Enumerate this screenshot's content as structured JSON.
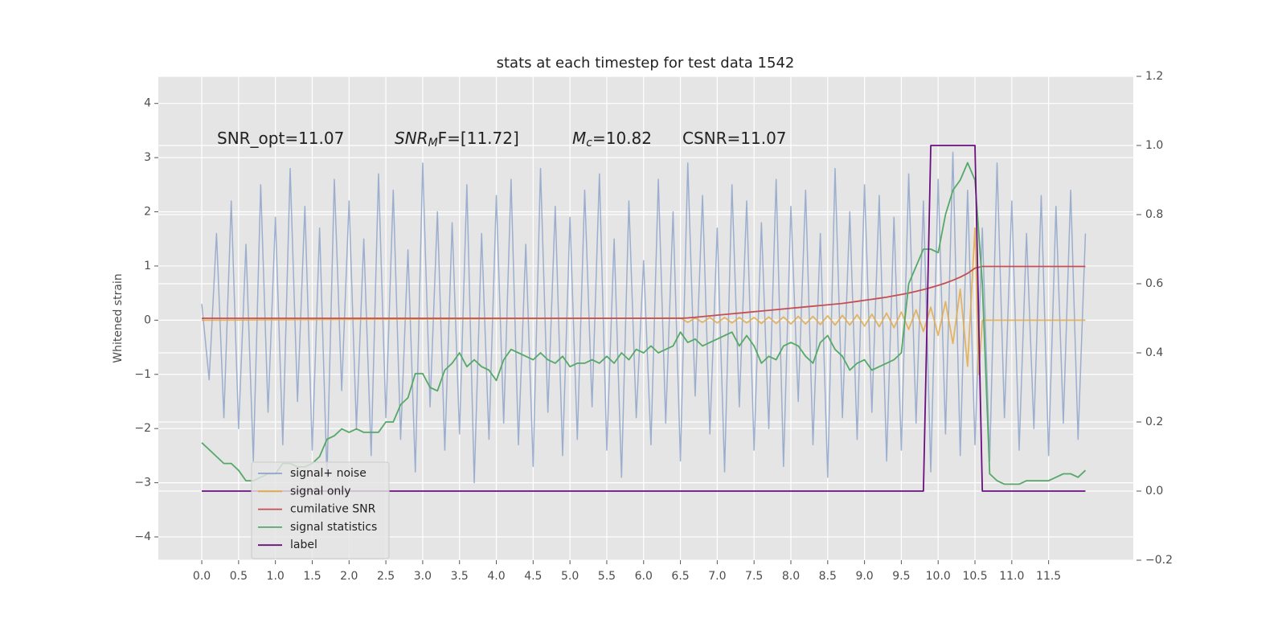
{
  "chart_data": {
    "type": "line",
    "title": "stats at each timestep for test data 1542",
    "y_label": "Whitened strain",
    "grid": true,
    "legend": "lower left",
    "xlim": [
      -0.59,
      12.65
    ],
    "ylim": [
      -4.43,
      4.5
    ],
    "y2lim": [
      -0.2,
      1.2
    ],
    "xticks": [
      {
        "value": 0,
        "label": "0.0"
      },
      {
        "value": 0.5,
        "label": "0.5"
      },
      {
        "value": 1,
        "label": "1.0"
      },
      {
        "value": 1.5,
        "label": "1.5"
      },
      {
        "value": 2,
        "label": "2.0"
      },
      {
        "value": 2.5,
        "label": "2.5"
      },
      {
        "value": 3,
        "label": "3.0"
      },
      {
        "value": 3.5,
        "label": "3.5"
      },
      {
        "value": 4,
        "label": "4.0"
      },
      {
        "value": 4.5,
        "label": "4.5"
      },
      {
        "value": 5,
        "label": "5.0"
      },
      {
        "value": 5.5,
        "label": "5.5"
      },
      {
        "value": 6,
        "label": "6.0"
      },
      {
        "value": 6.5,
        "label": "6.5"
      },
      {
        "value": 7,
        "label": "7.0"
      },
      {
        "value": 7.5,
        "label": "7.5"
      },
      {
        "value": 8,
        "label": "8.0"
      },
      {
        "value": 8.5,
        "label": "8.5"
      },
      {
        "value": 9,
        "label": "9.0"
      },
      {
        "value": 9.5,
        "label": "9.5"
      },
      {
        "value": 10,
        "label": "10.0"
      },
      {
        "value": 10.5,
        "label": "10.5"
      },
      {
        "value": 11,
        "label": "11.0"
      },
      {
        "value": 11.5,
        "label": "11.5"
      }
    ],
    "yticks": [
      {
        "value": -4,
        "label": "−4"
      },
      {
        "value": -3,
        "label": "−3"
      },
      {
        "value": -2,
        "label": "−2"
      },
      {
        "value": -1,
        "label": "−1"
      },
      0,
      1,
      2,
      3,
      4
    ],
    "y2ticks": [
      {
        "value": -0.2,
        "label": "−0.2"
      },
      {
        "value": 0,
        "label": "0.0"
      },
      0.2,
      0.4,
      0.6,
      0.8,
      {
        "value": 1,
        "label": "1.0"
      },
      1.2
    ],
    "annotations": [
      {
        "parts": [
          {
            "text": "SNR_opt=11.07"
          }
        ]
      },
      {
        "parts": [
          {
            "text": "SNR",
            "italic": true
          },
          {
            "text": "M",
            "italic": true,
            "sub": true
          },
          {
            "text": "F=[11.72]"
          }
        ]
      },
      {
        "parts": [
          {
            "text": "M",
            "italic": true
          },
          {
            "text": "c",
            "italic": true,
            "sub": true
          },
          {
            "text": "=10.82"
          }
        ]
      },
      {
        "parts": [
          {
            "text": "CSNR=11.07"
          }
        ]
      }
    ],
    "x": [
      0.0,
      0.1,
      0.2,
      0.3,
      0.4,
      0.5,
      0.6,
      0.7,
      0.8,
      0.9,
      1.0,
      1.1,
      1.2,
      1.3,
      1.4,
      1.5,
      1.6,
      1.7,
      1.8,
      1.9,
      2.0,
      2.1,
      2.2,
      2.3,
      2.4,
      2.5,
      2.6,
      2.7,
      2.8,
      2.9,
      3.0,
      3.1,
      3.2,
      3.3,
      3.4,
      3.5,
      3.6,
      3.7,
      3.8,
      3.9,
      4.0,
      4.1,
      4.2,
      4.3,
      4.4,
      4.5,
      4.6,
      4.7,
      4.8,
      4.9,
      5.0,
      5.1,
      5.2,
      5.3,
      5.4,
      5.5,
      5.6,
      5.7,
      5.8,
      5.9,
      6.0,
      6.1,
      6.2,
      6.3,
      6.4,
      6.5,
      6.6,
      6.7,
      6.8,
      6.9,
      7.0,
      7.1,
      7.2,
      7.3,
      7.4,
      7.5,
      7.6,
      7.7,
      7.8,
      7.9,
      8.0,
      8.1,
      8.2,
      8.3,
      8.4,
      8.5,
      8.6,
      8.7,
      8.8,
      8.9,
      9.0,
      9.1,
      9.2,
      9.3,
      9.4,
      9.5,
      9.6,
      9.7,
      9.8,
      9.9,
      10.0,
      10.1,
      10.2,
      10.3,
      10.4,
      10.5,
      10.6,
      10.7,
      10.8,
      10.9,
      11.0,
      11.1,
      11.2,
      11.3,
      11.4,
      11.5,
      11.6,
      11.7,
      11.8,
      11.9,
      12.0
    ],
    "series": [
      {
        "name": "signal+ noise",
        "color": "#8fa4ca",
        "values": [
          0.3,
          -1.1,
          1.6,
          -1.8,
          2.2,
          -2.0,
          1.4,
          -2.6,
          2.5,
          -1.7,
          1.9,
          -2.3,
          2.8,
          -1.5,
          2.1,
          -2.4,
          1.7,
          -2.9,
          2.6,
          -1.3,
          2.2,
          -2.0,
          1.5,
          -2.5,
          2.7,
          -1.8,
          2.4,
          -2.2,
          1.3,
          -2.8,
          2.9,
          -1.6,
          2.0,
          -2.4,
          1.8,
          -2.1,
          2.5,
          -3.0,
          1.6,
          -2.2,
          2.3,
          -1.9,
          2.6,
          -2.3,
          1.4,
          -2.7,
          2.8,
          -1.7,
          2.1,
          -2.5,
          1.9,
          -2.2,
          2.4,
          -1.6,
          2.7,
          -2.4,
          1.5,
          -2.9,
          2.2,
          -1.8,
          1.1,
          -2.3,
          2.6,
          -1.9,
          2.0,
          -2.6,
          2.9,
          -1.4,
          2.3,
          -2.1,
          1.7,
          -2.8,
          2.5,
          -1.6,
          2.2,
          -2.4,
          1.8,
          -2.0,
          2.6,
          -2.7,
          2.1,
          -1.5,
          2.4,
          -2.3,
          1.6,
          -2.9,
          2.8,
          -1.8,
          2.0,
          -2.2,
          2.5,
          -1.7,
          2.3,
          -2.6,
          1.9,
          -2.4,
          2.7,
          -1.9,
          2.2,
          -2.8,
          2.6,
          -2.1,
          3.1,
          -2.5,
          2.4,
          -2.3,
          1.7,
          -2.6,
          2.9,
          -1.8,
          2.2,
          -2.4,
          1.6,
          -2.0,
          2.3,
          -2.5,
          2.1,
          -1.9,
          2.4,
          -2.2,
          1.6
        ]
      },
      {
        "name": "signal only",
        "color": "#e0aa4c",
        "x": [
          0.0,
          6.5,
          6.6,
          6.7,
          6.8,
          6.9,
          7.0,
          7.1,
          7.2,
          7.3,
          7.4,
          7.5,
          7.6,
          7.7,
          7.8,
          7.9,
          8.0,
          8.1,
          8.2,
          8.3,
          8.4,
          8.5,
          8.6,
          8.7,
          8.8,
          8.9,
          9.0,
          9.1,
          9.2,
          9.3,
          9.4,
          9.5,
          9.6,
          9.7,
          9.8,
          9.9,
          10.0,
          10.1,
          10.2,
          10.3,
          10.4,
          10.5,
          10.55,
          10.6,
          12.0
        ],
        "values": [
          0,
          0.04,
          -0.04,
          0.04,
          -0.04,
          0.05,
          -0.05,
          0.05,
          -0.05,
          0.05,
          -0.05,
          0.05,
          -0.06,
          0.06,
          -0.06,
          0.06,
          -0.07,
          0.07,
          -0.07,
          0.07,
          -0.08,
          0.08,
          -0.09,
          0.09,
          -0.09,
          0.1,
          -0.11,
          0.11,
          -0.12,
          0.13,
          -0.14,
          0.15,
          -0.17,
          0.19,
          -0.21,
          0.24,
          -0.28,
          0.34,
          -0.43,
          0.57,
          -0.85,
          1.7,
          -1.0,
          0,
          0
        ]
      },
      {
        "name": "cumilative SNR",
        "color": "#c44e52",
        "axis": "y2",
        "values": [
          0.5,
          0.5,
          0.5,
          0.5,
          0.5,
          0.5,
          0.5,
          0.5,
          0.5,
          0.5,
          0.5,
          0.5,
          0.5,
          0.5,
          0.5,
          0.5,
          0.5,
          0.5,
          0.5,
          0.5,
          0.5,
          0.5,
          0.5,
          0.5,
          0.5,
          0.5,
          0.5,
          0.5,
          0.5,
          0.5,
          0.5,
          0.5,
          0.5,
          0.5,
          0.5,
          0.5,
          0.5,
          0.5,
          0.5,
          0.5,
          0.5,
          0.5,
          0.5,
          0.5,
          0.5,
          0.5,
          0.5,
          0.5,
          0.5,
          0.5,
          0.5,
          0.5,
          0.5,
          0.5,
          0.5,
          0.5,
          0.5,
          0.5,
          0.5,
          0.5,
          0.5,
          0.5,
          0.5,
          0.5,
          0.5,
          0.5,
          0.501,
          0.503,
          0.505,
          0.507,
          0.509,
          0.511,
          0.513,
          0.515,
          0.517,
          0.519,
          0.521,
          0.523,
          0.525,
          0.527,
          0.529,
          0.531,
          0.533,
          0.535,
          0.537,
          0.539,
          0.541,
          0.543,
          0.546,
          0.549,
          0.552,
          0.555,
          0.558,
          0.561,
          0.565,
          0.569,
          0.573,
          0.578,
          0.583,
          0.589,
          0.595,
          0.602,
          0.61,
          0.619,
          0.63,
          0.645,
          0.65,
          0.65,
          0.65,
          0.65,
          0.65,
          0.65,
          0.65,
          0.65,
          0.65,
          0.65,
          0.65,
          0.65,
          0.65,
          0.65,
          0.65
        ]
      },
      {
        "name": "signal statistics",
        "color": "#55a868",
        "axis": "y2",
        "values": [
          0.14,
          0.12,
          0.1,
          0.08,
          0.08,
          0.06,
          0.03,
          0.03,
          0.04,
          0.05,
          0.05,
          0.08,
          0.08,
          0.07,
          0.07,
          0.08,
          0.1,
          0.15,
          0.16,
          0.18,
          0.17,
          0.18,
          0.17,
          0.17,
          0.17,
          0.2,
          0.2,
          0.25,
          0.27,
          0.34,
          0.34,
          0.3,
          0.29,
          0.35,
          0.37,
          0.4,
          0.36,
          0.38,
          0.36,
          0.35,
          0.32,
          0.38,
          0.41,
          0.4,
          0.39,
          0.38,
          0.4,
          0.38,
          0.37,
          0.39,
          0.36,
          0.37,
          0.37,
          0.38,
          0.37,
          0.39,
          0.37,
          0.4,
          0.38,
          0.41,
          0.4,
          0.42,
          0.4,
          0.41,
          0.42,
          0.46,
          0.43,
          0.44,
          0.42,
          0.43,
          0.44,
          0.45,
          0.46,
          0.42,
          0.45,
          0.42,
          0.37,
          0.39,
          0.38,
          0.42,
          0.43,
          0.42,
          0.39,
          0.37,
          0.43,
          0.45,
          0.41,
          0.39,
          0.35,
          0.37,
          0.38,
          0.35,
          0.36,
          0.37,
          0.38,
          0.4,
          0.6,
          0.65,
          0.7,
          0.7,
          0.69,
          0.8,
          0.87,
          0.9,
          0.95,
          0.9,
          0.6,
          0.05,
          0.03,
          0.02,
          0.02,
          0.02,
          0.03,
          0.03,
          0.03,
          0.03,
          0.04,
          0.05,
          0.05,
          0.04,
          0.06
        ]
      },
      {
        "name": "label",
        "color": "#6b0f7f",
        "axis": "y2",
        "values": [
          0,
          0,
          0,
          0,
          0,
          0,
          0,
          0,
          0,
          0,
          0,
          0,
          0,
          0,
          0,
          0,
          0,
          0,
          0,
          0,
          0,
          0,
          0,
          0,
          0,
          0,
          0,
          0,
          0,
          0,
          0,
          0,
          0,
          0,
          0,
          0,
          0,
          0,
          0,
          0,
          0,
          0,
          0,
          0,
          0,
          0,
          0,
          0,
          0,
          0,
          0,
          0,
          0,
          0,
          0,
          0,
          0,
          0,
          0,
          0,
          0,
          0,
          0,
          0,
          0,
          0,
          0,
          0,
          0,
          0,
          0,
          0,
          0,
          0,
          0,
          0,
          0,
          0,
          0,
          0,
          0,
          0,
          0,
          0,
          0,
          0,
          0,
          0,
          0,
          0,
          0,
          0,
          0,
          0,
          0,
          0,
          0,
          0,
          0,
          1,
          1,
          1,
          1,
          1,
          1,
          1,
          0,
          0,
          0,
          0,
          0,
          0,
          0,
          0,
          0,
          0,
          0,
          0,
          0,
          0,
          0
        ]
      }
    ]
  }
}
